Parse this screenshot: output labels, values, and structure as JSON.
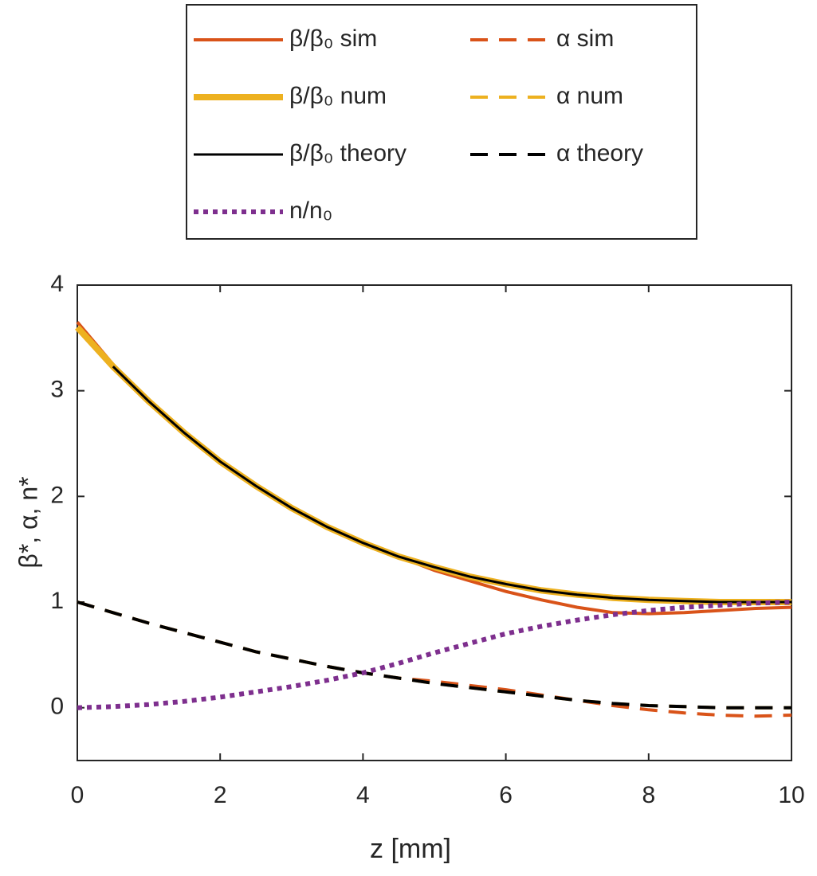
{
  "chart_data": {
    "type": "line",
    "xlabel": "z [mm]",
    "ylabel": "β*, α, n*",
    "x": [
      0,
      0.5,
      1,
      1.5,
      2,
      2.5,
      3,
      3.5,
      4,
      4.5,
      5,
      5.5,
      6,
      6.5,
      7,
      7.5,
      8,
      8.5,
      9,
      9.5,
      10
    ],
    "xlim": [
      0,
      10
    ],
    "xticks": [
      0,
      2,
      4,
      6,
      8,
      10
    ],
    "ylim": [
      -0.5,
      4
    ],
    "yticks": [
      0,
      1,
      2,
      3,
      4
    ],
    "grid": false,
    "series": [
      {
        "name": "β/β₀ sim",
        "color": "#d95319",
        "line_style": "solid",
        "values": [
          3.65,
          3.25,
          2.91,
          2.61,
          2.33,
          2.1,
          1.89,
          1.71,
          1.56,
          1.43,
          1.3,
          1.2,
          1.1,
          1.02,
          0.95,
          0.9,
          0.89,
          0.9,
          0.92,
          0.94,
          0.95
        ]
      },
      {
        "name": "α sim",
        "color": "#d95319",
        "line_style": "dashed",
        "values": [
          1,
          0.9,
          0.8,
          0.71,
          0.62,
          0.53,
          0.46,
          0.39,
          0.33,
          0.28,
          0.25,
          0.21,
          0.17,
          0.12,
          0.07,
          0.02,
          -0.02,
          -0.05,
          -0.07,
          -0.08,
          -0.07
        ]
      },
      {
        "name": "β/β₀ num",
        "color": "#edb120",
        "line_style": "solid",
        "values": [
          3.6,
          3.23,
          2.9,
          2.6,
          2.33,
          2.1,
          1.89,
          1.71,
          1.56,
          1.43,
          1.33,
          1.24,
          1.17,
          1.11,
          1.07,
          1.04,
          1.02,
          1.01,
          1.0,
          1.0,
          1.0
        ]
      },
      {
        "name": "α num",
        "color": "#edb120",
        "line_style": "dashed",
        "values": [
          1,
          0.9,
          0.8,
          0.71,
          0.62,
          0.53,
          0.46,
          0.39,
          0.33,
          0.28,
          0.23,
          0.19,
          0.15,
          0.11,
          0.07,
          0.04,
          0.02,
          0.01,
          0,
          0,
          0
        ]
      },
      {
        "name": "β/β₀ theory",
        "color": "#000000",
        "line_style": "solid",
        "values": [
          null,
          3.23,
          2.9,
          2.6,
          2.33,
          2.1,
          1.89,
          1.71,
          1.56,
          1.43,
          1.33,
          1.24,
          1.17,
          1.11,
          1.07,
          1.04,
          1.02,
          1.01,
          1.0,
          1.0,
          1.0
        ]
      },
      {
        "name": "α theory",
        "color": "#000000",
        "line_style": "dashed",
        "values": [
          1,
          0.9,
          0.8,
          0.71,
          0.62,
          0.53,
          0.46,
          0.39,
          0.33,
          0.28,
          0.23,
          0.19,
          0.15,
          0.11,
          0.07,
          0.04,
          0.02,
          0.01,
          0,
          0,
          0
        ]
      },
      {
        "name": "n/n₀",
        "color": "#7e2f8e",
        "line_style": "dotted",
        "values": [
          0,
          0.01,
          0.03,
          0.06,
          0.1,
          0.15,
          0.2,
          0.26,
          0.33,
          0.42,
          0.52,
          0.61,
          0.7,
          0.77,
          0.83,
          0.88,
          0.92,
          0.95,
          0.97,
          0.99,
          1.0
        ]
      }
    ]
  }
}
